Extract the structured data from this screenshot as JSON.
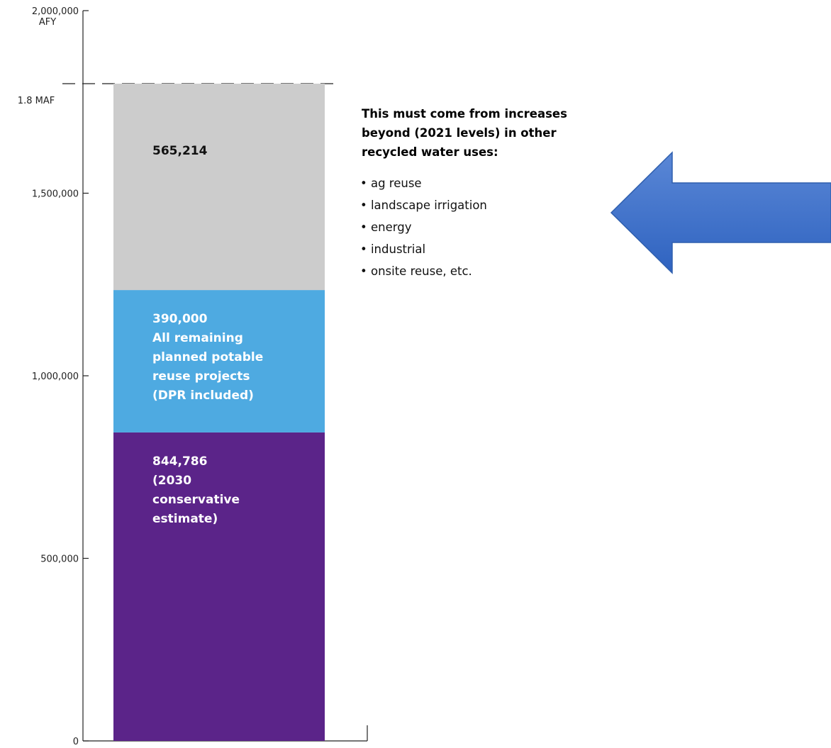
{
  "chart_data": {
    "type": "bar",
    "stacked": true,
    "categories": [
      ""
    ],
    "series": [
      {
        "values": [
          844786
        ],
        "color": "#5b2489",
        "label_color": "#ffffff",
        "label_lines": [
          "844,786",
          "(2030",
          "conservative",
          "estimate)"
        ]
      },
      {
        "values": [
          390000
        ],
        "color": "#4eaae1",
        "label_color": "#ffffff",
        "label_lines": [
          "390,000",
          "All remaining",
          "planned potable",
          "reuse projects",
          "(DPR included)"
        ]
      },
      {
        "values": [
          565214
        ],
        "color": "#cccccc",
        "label_color": "#111111",
        "label_lines": [
          "565,214"
        ]
      }
    ],
    "ylim": [
      0,
      2000000
    ],
    "y_ticks": [
      {
        "value": 0,
        "label": "0"
      },
      {
        "value": 500000,
        "label": "500,000"
      },
      {
        "value": 1000000,
        "label": "1,000,000"
      },
      {
        "value": 1500000,
        "label": "1,500,000"
      },
      {
        "value": 2000000,
        "label": "2,000,000"
      }
    ],
    "y_unit": "AFY",
    "target_line": {
      "value": 1800000,
      "label": "1.8 MAF",
      "style": "dashed"
    },
    "grid": false,
    "callout": {
      "heading_lines": [
        "This must come from increases",
        "beyond (2021 levels) in other",
        "recycled water uses:"
      ],
      "items": [
        "ag reuse",
        "landscape irrigation",
        "energy",
        "industrial",
        "onsite reuse, etc."
      ],
      "bullet": "•"
    },
    "arrow": {
      "direction": "left",
      "color": "#3a6dc8"
    }
  }
}
